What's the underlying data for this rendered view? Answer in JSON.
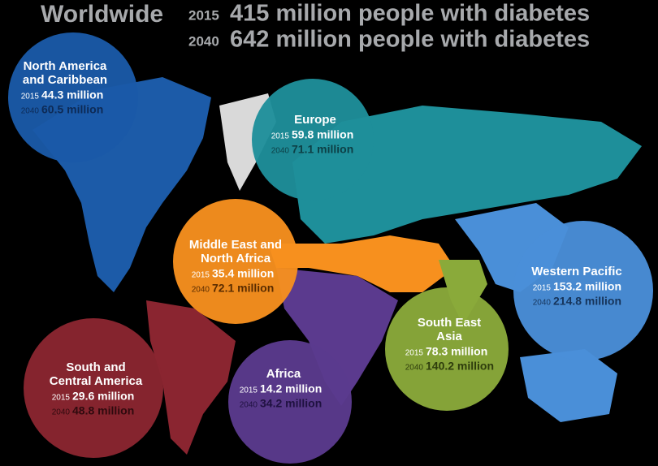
{
  "header": {
    "label": "Worldwide",
    "rows": [
      {
        "year": "2015",
        "text": "415 million people with diabetes"
      },
      {
        "year": "2040",
        "text": "642 million people with diabetes"
      }
    ]
  },
  "regions": [
    {
      "name_lines": [
        "North America",
        "and Caribbean"
      ],
      "rows": [
        {
          "year": "2015",
          "value": "44.3 million"
        },
        {
          "year": "2040",
          "value": "60.5 million"
        }
      ]
    },
    {
      "name_lines": [
        "Europe"
      ],
      "rows": [
        {
          "year": "2015",
          "value": "59.8 million"
        },
        {
          "year": "2040",
          "value": "71.1 million"
        }
      ]
    },
    {
      "name_lines": [
        "Middle East and",
        "North Africa"
      ],
      "rows": [
        {
          "year": "2015",
          "value": "35.4 million"
        },
        {
          "year": "2040",
          "value": "72.1 million"
        }
      ]
    },
    {
      "name_lines": [
        "Western Pacific"
      ],
      "rows": [
        {
          "year": "2015",
          "value": "153.2 million"
        },
        {
          "year": "2040",
          "value": "214.8 million"
        }
      ]
    },
    {
      "name_lines": [
        "South East",
        "Asia"
      ],
      "rows": [
        {
          "year": "2015",
          "value": "78.3 million"
        },
        {
          "year": "2040",
          "value": "140.2 million"
        }
      ]
    },
    {
      "name_lines": [
        "South and",
        "Central America"
      ],
      "rows": [
        {
          "year": "2015",
          "value": "29.6 million"
        },
        {
          "year": "2040",
          "value": "48.8 million"
        }
      ]
    },
    {
      "name_lines": [
        "Africa"
      ],
      "rows": [
        {
          "year": "2015",
          "value": "14.2 million"
        },
        {
          "year": "2040",
          "value": "34.2 million"
        }
      ]
    }
  ]
}
